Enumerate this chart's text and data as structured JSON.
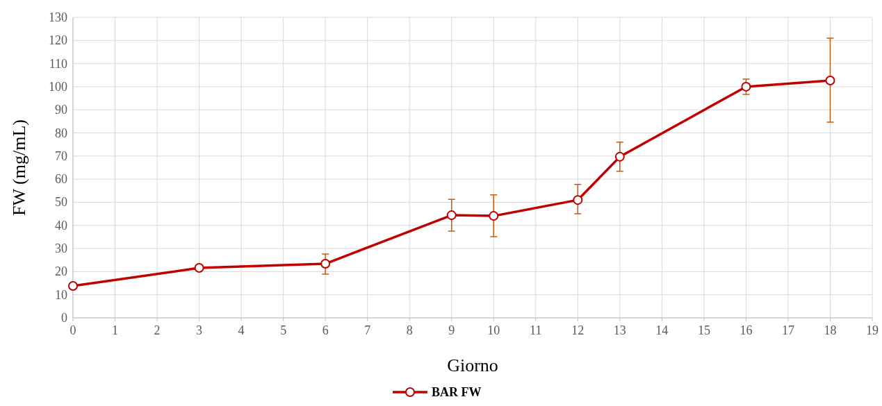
{
  "chart_data": {
    "type": "line",
    "xlabel": "Giorno",
    "ylabel": "FW (mg/mL)",
    "x": [
      0,
      3,
      6,
      9,
      10,
      12,
      13,
      16,
      18
    ],
    "series": [
      {
        "name": "BAR FW",
        "color": "#c00000",
        "values": [
          13.8,
          21.6,
          23.4,
          44.4,
          44.1,
          51.0,
          69.7,
          100.0,
          102.7
        ],
        "errors": [
          null,
          null,
          [
            18.9,
            27.6
          ],
          [
            37.5,
            51.3
          ],
          [
            35.1,
            53.2
          ],
          [
            45.0,
            57.7
          ],
          [
            63.4,
            76.0
          ],
          [
            96.7,
            103.3
          ],
          [
            84.7,
            121.0
          ]
        ]
      }
    ],
    "xlim": [
      0,
      19
    ],
    "xticks": [
      0,
      1,
      2,
      3,
      4,
      5,
      6,
      7,
      8,
      9,
      10,
      11,
      12,
      13,
      14,
      15,
      16,
      17,
      18,
      19
    ],
    "ylim": [
      0,
      130
    ],
    "yticks": [
      0,
      10,
      20,
      30,
      40,
      50,
      60,
      70,
      80,
      90,
      100,
      110,
      120,
      130
    ],
    "grid": true,
    "legend": "bottom",
    "marker": "circle",
    "line_style": "solid"
  }
}
